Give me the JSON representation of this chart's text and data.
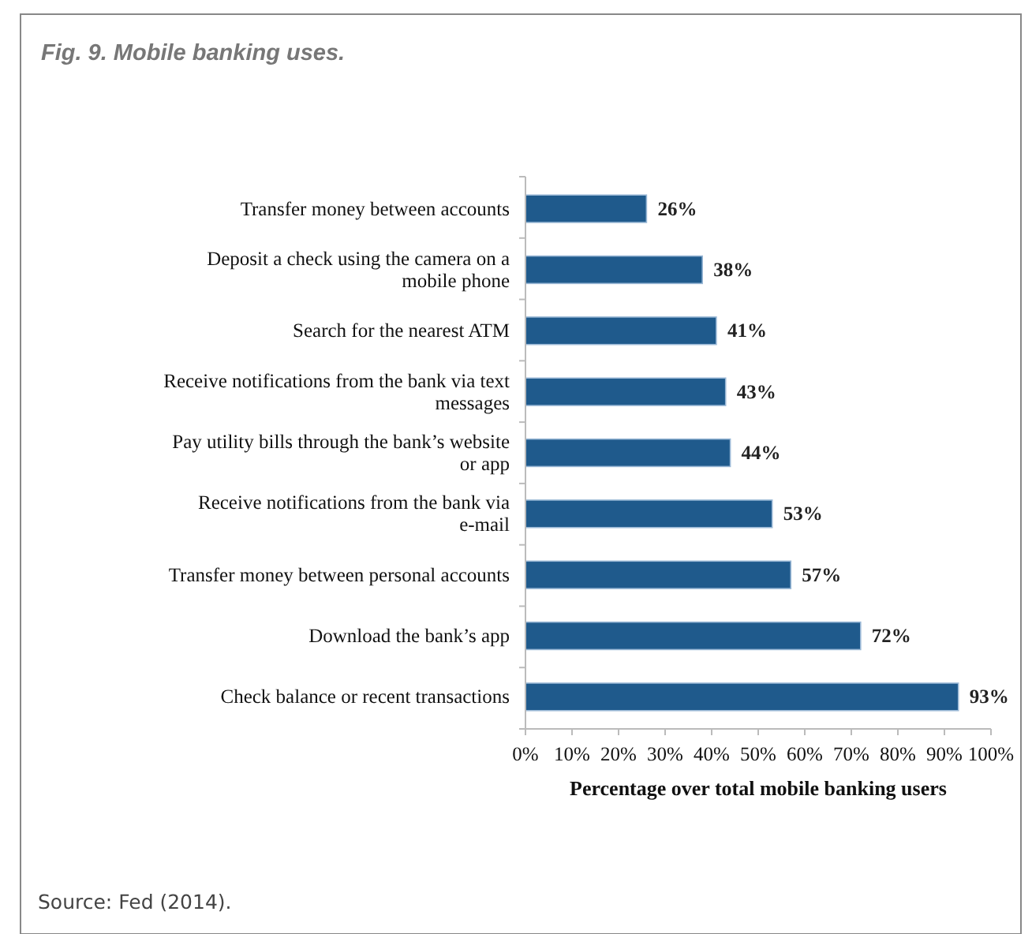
{
  "chart_data": {
    "type": "bar",
    "orientation": "horizontal",
    "title": "Fig. 9. Mobile banking uses.",
    "xlabel": "Percentage over total mobile banking users",
    "categories": [
      "Transfer money between accounts",
      "Deposit a check using the camera on a mobile phone",
      "Search for the nearest ATM",
      "Receive notifications from the bank via text messages",
      "Pay utility bills through the bank’s website or app",
      "Receive notifications from the bank via e-mail",
      "Transfer money between personal accounts",
      "Download the bank’s app",
      "Check balance or recent transactions"
    ],
    "values": [
      26,
      38,
      41,
      43,
      44,
      53,
      57,
      72,
      93
    ],
    "value_labels": [
      "26%",
      "38%",
      "41%",
      "43%",
      "44%",
      "53%",
      "57%",
      "72%",
      "93%"
    ],
    "color": "#1f5a8c",
    "xlim": [
      0,
      100
    ],
    "xticks": [
      {
        "value": 0,
        "label": "0%"
      },
      {
        "value": 10,
        "label": "10%"
      },
      {
        "value": 20,
        "label": "20%"
      },
      {
        "value": 30,
        "label": "30%"
      },
      {
        "value": 40,
        "label": "40%"
      },
      {
        "value": 50,
        "label": "50%"
      },
      {
        "value": 60,
        "label": "60%"
      },
      {
        "value": 70,
        "label": "70%"
      },
      {
        "value": 80,
        "label": "80%"
      },
      {
        "value": 90,
        "label": "90%"
      },
      {
        "value": 100,
        "label": "100%"
      }
    ],
    "grid": false,
    "annotations": [
      "Source: Fed (2014)."
    ]
  }
}
